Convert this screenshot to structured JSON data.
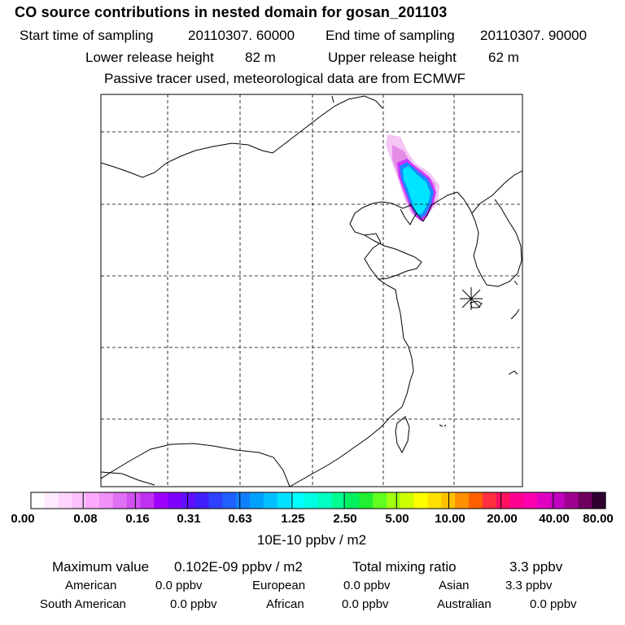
{
  "header": {
    "title": "CO  source contributions in nested domain for gosan_201103",
    "start_label": "Start time of sampling",
    "start_value": "20110307. 60000",
    "end_label": "End time of sampling",
    "end_value": "20110307. 90000",
    "lower_label": "Lower release height",
    "lower_value": "82 m",
    "upper_label": "Upper release height",
    "upper_value": "62 m",
    "note": "Passive tracer used, meteorological data are from ECMWF"
  },
  "map": {
    "receptor": "gosan",
    "plume_colors": [
      "#f4c6f4",
      "#e48ce8",
      "#cc33ff",
      "#6633ff",
      "#1a88ff",
      "#00e5ff",
      "#11ffd0"
    ]
  },
  "colorbar": {
    "colors": [
      "#ffffff",
      "#ffeaff",
      "#ffd5ff",
      "#ffc0ff",
      "#ffaaff",
      "#f090f8",
      "#e070f4",
      "#d050f0",
      "#c030f0",
      "#a000ff",
      "#8000ff",
      "#6010ff",
      "#4020ff",
      "#3040ff",
      "#2060ff",
      "#1080ff",
      "#00a0ff",
      "#00c0ff",
      "#00e0ff",
      "#00ffff",
      "#00ffe0",
      "#00ffc0",
      "#00ff90",
      "#00f060",
      "#20f030",
      "#60ff20",
      "#a0ff10",
      "#d0ff00",
      "#ffff00",
      "#ffe000",
      "#ffc000",
      "#ff9000",
      "#ff6000",
      "#ff3040",
      "#ff1060",
      "#ff0090",
      "#ff00b0",
      "#e000c0",
      "#c000c0",
      "#a00090",
      "#700060",
      "#300030"
    ],
    "ticks": [
      "0.00",
      "0.08",
      "0.16",
      "0.31",
      "0.63",
      "1.25",
      "2.50",
      "5.00",
      "10.00",
      "20.00",
      "40.00",
      "80.00"
    ],
    "unit": "10E-10 ppbv / m2"
  },
  "summary": {
    "max_label": "Maximum value",
    "max_value": "0.102E-09 ppbv / m2",
    "total_label": "Total mixing ratio",
    "total_value": "3.3 ppbv",
    "rows": [
      [
        {
          "label": "American",
          "value": "0.0 ppbv"
        },
        {
          "label": "European",
          "value": "0.0 ppbv"
        },
        {
          "label": "Asian",
          "value": "3.3 ppbv"
        }
      ],
      [
        {
          "label": "South American",
          "value": "0.0 ppbv"
        },
        {
          "label": "African",
          "value": "0.0 ppbv"
        },
        {
          "label": "Australian",
          "value": "0.0 ppbv"
        }
      ]
    ]
  }
}
